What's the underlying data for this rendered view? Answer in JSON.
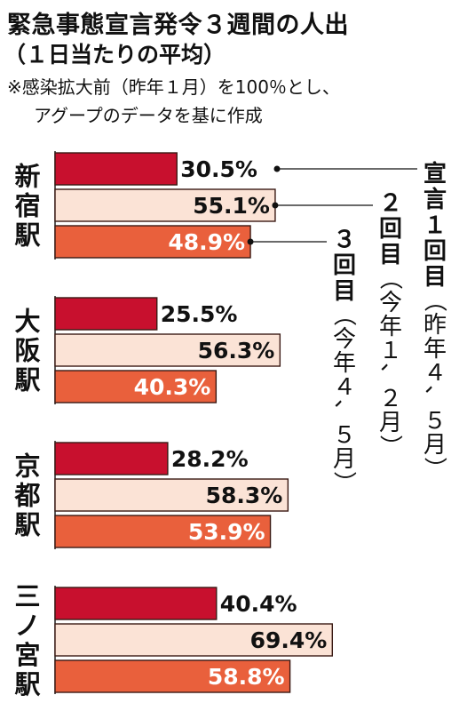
{
  "title": "緊急事態宣言発令３週間の人出",
  "subtitle": "（１日当たりの平均）",
  "notes": [
    "※感染拡大前（昨年１月）を100％とし、",
    "アグープのデータを基に作成"
  ],
  "colors": {
    "round1": "#c8102e",
    "round2": "#fbe3d6",
    "round3": "#e9603c",
    "outline": "#3a1a14"
  },
  "chart_data": {
    "type": "bar",
    "orientation": "horizontal",
    "unit": "%",
    "categories": [
      "新宿駅",
      "大阪駅",
      "京都駅",
      "三ノ宮駅"
    ],
    "series": [
      {
        "name": "宣言１回目（昨年４、５月）",
        "values": [
          30.5,
          25.5,
          28.2,
          40.4
        ],
        "labels": [
          "30.5%",
          "25.5%",
          "28.2%",
          "40.4%"
        ]
      },
      {
        "name": "２回目（今年１、２月）",
        "values": [
          55.1,
          56.3,
          58.3,
          69.4
        ],
        "labels": [
          "55.1%",
          "56.3%",
          "58.3%",
          "69.4%"
        ]
      },
      {
        "name": "３回目（今年４、５月）",
        "values": [
          48.9,
          40.3,
          53.9,
          58.8
        ],
        "labels": [
          "48.9%",
          "40.3%",
          "53.9%",
          "58.8%"
        ]
      }
    ],
    "legend_parts": [
      {
        "lead": "宣言１回目",
        "paren": "（昨年４、５月）"
      },
      {
        "lead": "２回目",
        "paren": "（今年１、２月）"
      },
      {
        "lead": "３回目",
        "paren": "（今年４、５月）"
      }
    ],
    "legend_placement": "right, vertical text"
  }
}
